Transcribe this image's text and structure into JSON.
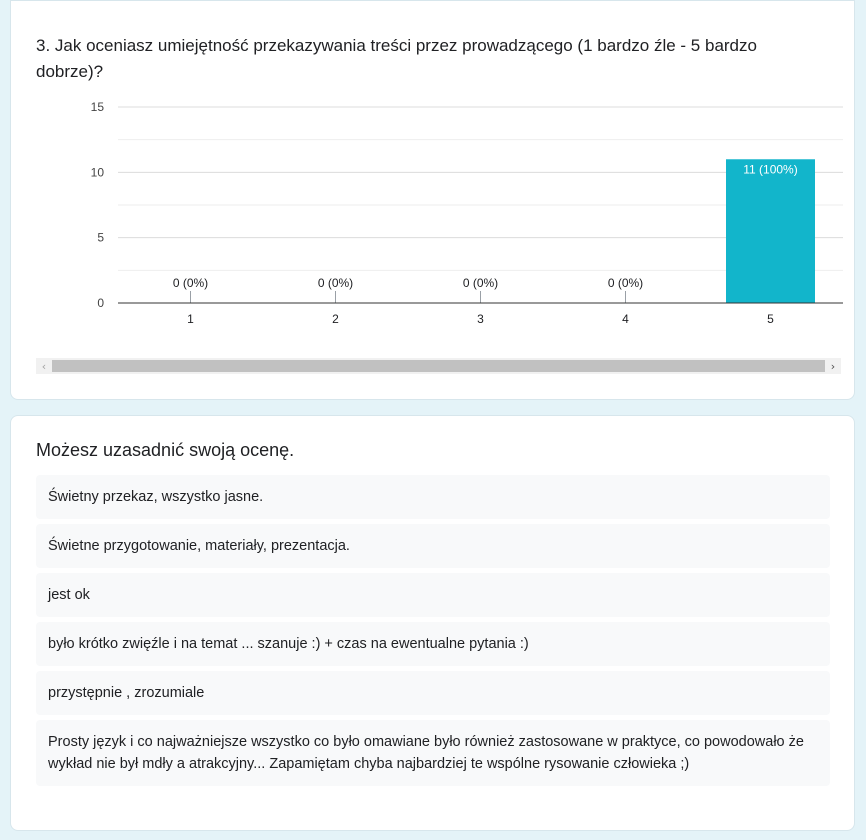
{
  "question": {
    "title": "3. Jak oceniasz umiejętność przekazywania treści przez prowadzącego (1 bardzo źle - 5 bardzo dobrze)?"
  },
  "chart_data": {
    "type": "bar",
    "categories": [
      "1",
      "2",
      "3",
      "4",
      "5"
    ],
    "values": [
      0,
      0,
      0,
      0,
      11
    ],
    "data_labels": [
      "0 (0%)",
      "0 (0%)",
      "0 (0%)",
      "0 (0%)",
      "11 (100%)"
    ],
    "ylim": [
      0,
      15
    ],
    "yticks": [
      "0",
      "5",
      "10",
      "15"
    ],
    "ytick_values": [
      0,
      5,
      10,
      15
    ],
    "grid": true,
    "bar_color": "#12b5cb",
    "title": "",
    "xlabel": "",
    "ylabel": ""
  },
  "scrollbar": {
    "left_arrow": "‹",
    "right_arrow": "›"
  },
  "text_section": {
    "title": "Możesz uzasadnić swoją ocenę.",
    "responses": [
      "Świetny przekaz, wszystko jasne.",
      "Świetne przygotowanie, materiały, prezentacja.",
      "jest ok",
      "było krótko zwięźle i na temat ... szanuje :) + czas na ewentualne pytania :)",
      "przystępnie , zrozumiale",
      "Prosty język i co najważniejsze wszystko co było omawiane było również zastosowane w praktyce, co powodowało że wykład nie był mdły a atrakcyjny... Zapamiętam chyba najbardziej te wspólne rysowanie człowieka ;)"
    ]
  }
}
